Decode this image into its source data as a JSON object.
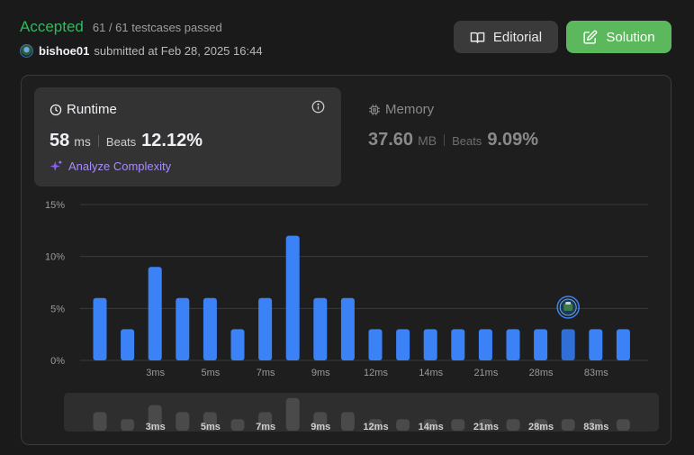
{
  "header": {
    "status": "Accepted",
    "testcases": "61 / 61 testcases passed",
    "username": "bishoe01",
    "submitted_text": "submitted at Feb 28, 2025 16:44"
  },
  "buttons": {
    "editorial_label": "Editorial",
    "solution_label": "Solution"
  },
  "runtime": {
    "title": "Runtime",
    "value": "58",
    "unit": "ms",
    "beats_label": "Beats",
    "beats_value": "12.12%",
    "analyze_label": "Analyze Complexity"
  },
  "memory": {
    "title": "Memory",
    "value": "37.60",
    "unit": "MB",
    "beats_label": "Beats",
    "beats_value": "9.09%"
  },
  "colors": {
    "accepted": "#2cbb5d",
    "bar": "#3b82f6",
    "bar_highlight": "#2f6fd6",
    "solution_button": "#5cb85c",
    "analyze": "#a78bfa"
  },
  "chart_data": {
    "type": "bar",
    "ylabels": [
      "15%",
      "10%",
      "5%",
      "0%"
    ],
    "ylim": [
      0,
      15
    ],
    "values": [
      6,
      3,
      9,
      6,
      6,
      3,
      6,
      12,
      6,
      6,
      3,
      3,
      3,
      3,
      3,
      3,
      3,
      3,
      3,
      3
    ],
    "xticks": [
      {
        "index": 2,
        "label": "3ms"
      },
      {
        "index": 4,
        "label": "5ms"
      },
      {
        "index": 6,
        "label": "7ms"
      },
      {
        "index": 8,
        "label": "9ms"
      },
      {
        "index": 10,
        "label": "12ms"
      },
      {
        "index": 12,
        "label": "14ms"
      },
      {
        "index": 14,
        "label": "21ms"
      },
      {
        "index": 16,
        "label": "28ms"
      },
      {
        "index": 18,
        "label": "83ms"
      }
    ],
    "highlight_index": 17,
    "grid": true
  }
}
